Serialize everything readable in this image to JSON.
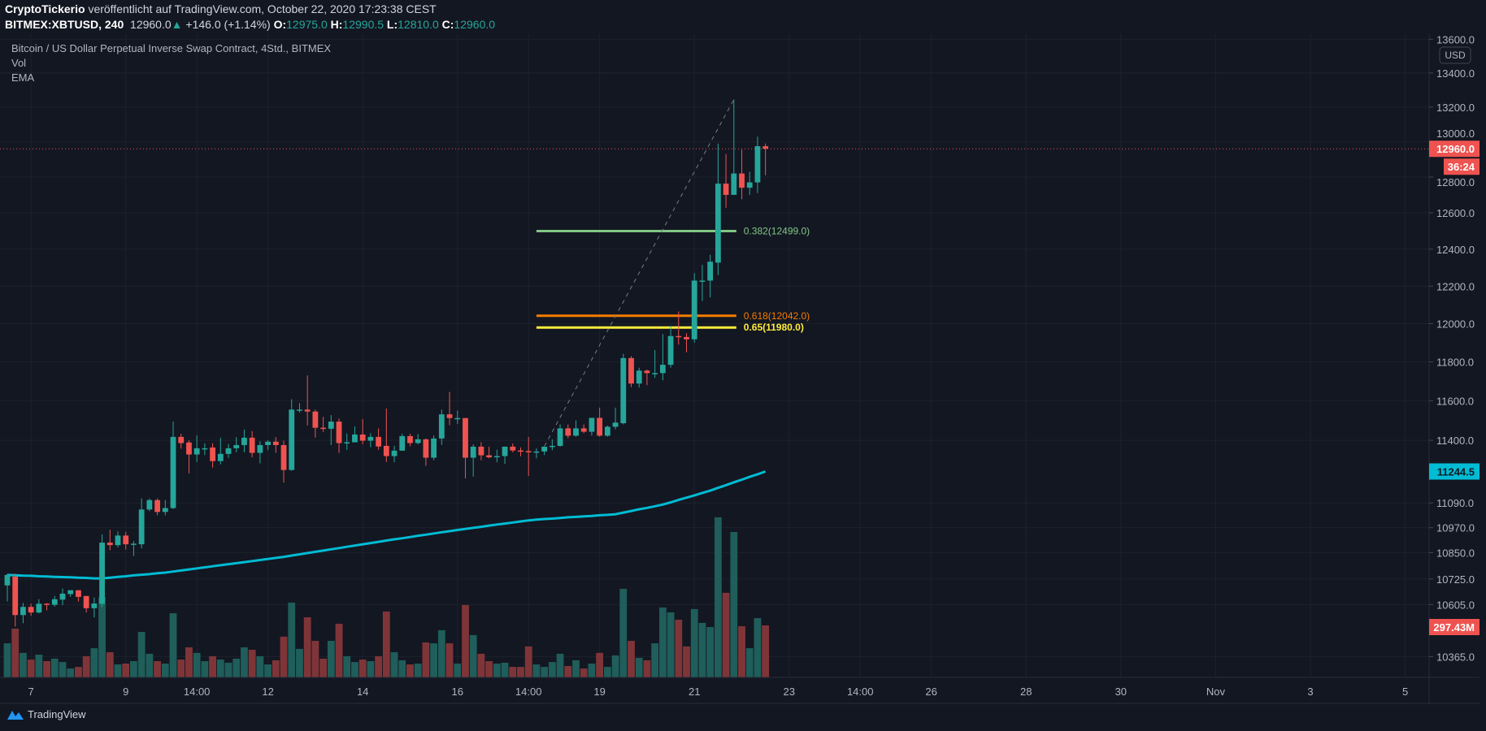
{
  "header": {
    "author": "CryptoTickerio",
    "published": "veröffentlicht auf TradingView.com, October 22, 2020 17:23:38 CEST",
    "symbol": "BITMEX:XBTUSD, 240",
    "last": "12960.0",
    "change": "+146.0 (+1.14%)",
    "o_label": "O:",
    "o": "12975.0",
    "h_label": "H:",
    "h": "12990.5",
    "l_label": "L:",
    "l": "12810.0",
    "c_label": "C:",
    "c": "12960.0"
  },
  "legend": {
    "title": "Bitcoin / US Dollar Perpetual Inverse Swap Contract, 4Std., BITMEX",
    "vol": "Vol",
    "ema": "EMA"
  },
  "axis": {
    "currency": "USD",
    "last_price_badge": "12960.0",
    "countdown_badge": "36:24",
    "ema_badge": "11244.5",
    "volume_badge": "297.43M"
  },
  "footer": {
    "brand": "TradingView"
  },
  "colors": {
    "background": "#131722",
    "up": "#26a69a",
    "down": "#ef5350",
    "ema": "#00bcd4",
    "fib_0382": "#81c784",
    "fib_0618": "#f57c00",
    "fib_065": "#ffeb3b"
  },
  "chart_data": {
    "type": "candlestick",
    "scale": "log",
    "grid": true,
    "y_ticks": [
      "13600.0",
      "13400.0",
      "13200.0",
      "13000.0",
      "12800.0",
      "12600.0",
      "12400.0",
      "12200.0",
      "12000.0",
      "11800.0",
      "11600.0",
      "11400.0",
      "11090.0",
      "10970.0",
      "10850.0",
      "10725.0",
      "10605.0",
      "10365.0"
    ],
    "x_ticks": [
      "7",
      "9",
      "14:00",
      "12",
      "14",
      "16",
      "14:00",
      "19",
      "21",
      "23",
      "14:00",
      "26",
      "28",
      "30",
      "Nov",
      "3",
      "5"
    ],
    "ohlc": [
      [
        10695,
        10750,
        10620,
        10744
      ],
      [
        10736,
        10750,
        10503,
        10556
      ],
      [
        10556,
        10613,
        10518,
        10594
      ],
      [
        10594,
        10609,
        10552,
        10568
      ],
      [
        10568,
        10630,
        10564,
        10609
      ],
      [
        10609,
        10612,
        10578,
        10604
      ],
      [
        10604,
        10645,
        10596,
        10630
      ],
      [
        10628,
        10680,
        10602,
        10656
      ],
      [
        10654,
        10672,
        10641,
        10672
      ],
      [
        10672,
        10672,
        10619,
        10641
      ],
      [
        10645,
        10645,
        10568,
        10588
      ],
      [
        10588,
        10638,
        10545,
        10610
      ],
      [
        10608,
        10938,
        10594,
        10898
      ],
      [
        10898,
        10960,
        10862,
        10886
      ],
      [
        10886,
        10952,
        10875,
        10932
      ],
      [
        10932,
        10950,
        10865,
        10890
      ],
      [
        10893,
        10905,
        10834,
        10893
      ],
      [
        10890,
        11112,
        10870,
        11058
      ],
      [
        11058,
        11112,
        11050,
        11104
      ],
      [
        11104,
        11112,
        11030,
        11046
      ],
      [
        11046,
        11104,
        11030,
        11065
      ],
      [
        11065,
        11494,
        11060,
        11417
      ],
      [
        11417,
        11433,
        11358,
        11386
      ],
      [
        11389,
        11400,
        11235,
        11329
      ],
      [
        11329,
        11425,
        11292,
        11360
      ],
      [
        11360,
        11385,
        11326,
        11360
      ],
      [
        11364,
        11385,
        11264,
        11296
      ],
      [
        11296,
        11413,
        11280,
        11332
      ],
      [
        11332,
        11382,
        11312,
        11360
      ],
      [
        11360,
        11416,
        11340,
        11376
      ],
      [
        11376,
        11454,
        11340,
        11413
      ],
      [
        11413,
        11446,
        11315,
        11337
      ],
      [
        11337,
        11395,
        11285,
        11376
      ],
      [
        11376,
        11400,
        11350,
        11393
      ],
      [
        11393,
        11416,
        11337,
        11376
      ],
      [
        11376,
        11398,
        11190,
        11252
      ],
      [
        11252,
        11608,
        11248,
        11555
      ],
      [
        11555,
        11588,
        11540,
        11555
      ],
      [
        11555,
        11730,
        11475,
        11545
      ],
      [
        11545,
        11555,
        11413,
        11463
      ],
      [
        11463,
        11518,
        11442,
        11458
      ],
      [
        11458,
        11527,
        11376,
        11494
      ],
      [
        11494,
        11510,
        11337,
        11386
      ],
      [
        11386,
        11434,
        11352,
        11390
      ],
      [
        11390,
        11470,
        11390,
        11429
      ],
      [
        11429,
        11507,
        11380,
        11398
      ],
      [
        11398,
        11436,
        11365,
        11417
      ],
      [
        11417,
        11460,
        11353,
        11369
      ],
      [
        11372,
        11560,
        11292,
        11321
      ],
      [
        11321,
        11372,
        11290,
        11348
      ],
      [
        11348,
        11433,
        11348,
        11421
      ],
      [
        11421,
        11433,
        11370,
        11386
      ],
      [
        11386,
        11431,
        11380,
        11405
      ],
      [
        11405,
        11409,
        11272,
        11313
      ],
      [
        11313,
        11425,
        11300,
        11409
      ],
      [
        11409,
        11555,
        11377,
        11531
      ],
      [
        11531,
        11645,
        11476,
        11512
      ],
      [
        11512,
        11550,
        11482,
        11512
      ],
      [
        11512,
        11512,
        11211,
        11313
      ],
      [
        11313,
        11380,
        11219,
        11368
      ],
      [
        11368,
        11390,
        11300,
        11325
      ],
      [
        11325,
        11368,
        11310,
        11315
      ],
      [
        11318,
        11353,
        11290,
        11321
      ],
      [
        11321,
        11368,
        11282,
        11368
      ],
      [
        11368,
        11384,
        11340,
        11349
      ],
      [
        11349,
        11364,
        11320,
        11346
      ],
      [
        11346,
        11417,
        11223,
        11340
      ],
      [
        11340,
        11360,
        11310,
        11344
      ],
      [
        11344,
        11368,
        11326,
        11368
      ],
      [
        11368,
        11405,
        11350,
        11372
      ],
      [
        11372,
        11480,
        11368,
        11460
      ],
      [
        11460,
        11480,
        11410,
        11423
      ],
      [
        11423,
        11500,
        11418,
        11460
      ],
      [
        11460,
        11480,
        11436,
        11443
      ],
      [
        11443,
        11513,
        11423,
        11513
      ],
      [
        11513,
        11565,
        11418,
        11423
      ],
      [
        11423,
        11474,
        11418,
        11468
      ],
      [
        11468,
        11565,
        11455,
        11489
      ],
      [
        11486,
        11842,
        11480,
        11820
      ],
      [
        11820,
        11830,
        11670,
        11688
      ],
      [
        11688,
        11770,
        11668,
        11755
      ],
      [
        11755,
        11760,
        11680,
        11742
      ],
      [
        11742,
        11862,
        11718,
        11742
      ],
      [
        11742,
        11945,
        11705,
        11785
      ],
      [
        11785,
        11988,
        11770,
        11935
      ],
      [
        11935,
        12065,
        11890,
        11930
      ],
      [
        11930,
        11950,
        11850,
        11918
      ],
      [
        11918,
        12270,
        11900,
        12230
      ],
      [
        12230,
        12315,
        12120,
        12230
      ],
      [
        12230,
        12370,
        12140,
        12332
      ],
      [
        12327,
        12990,
        12260,
        12763
      ],
      [
        12763,
        12930,
        12628,
        12700
      ],
      [
        12700,
        13244,
        12700,
        12820
      ],
      [
        12820,
        12955,
        12675,
        12740
      ],
      [
        12740,
        12830,
        12700,
        12770
      ],
      [
        12770,
        13030,
        12710,
        12975
      ],
      [
        12975,
        12990.5,
        12810,
        12960
      ]
    ],
    "volume_millions": [
      195,
      279,
      140,
      102,
      130,
      93,
      107,
      88,
      51,
      60,
      121,
      167,
      459,
      144,
      74,
      79,
      93,
      260,
      135,
      93,
      79,
      367,
      102,
      172,
      140,
      93,
      121,
      102,
      84,
      107,
      172,
      158,
      121,
      74,
      98,
      233,
      428,
      163,
      344,
      209,
      107,
      209,
      307,
      121,
      88,
      102,
      93,
      121,
      377,
      144,
      98,
      74,
      79,
      200,
      195,
      270,
      195,
      79,
      414,
      242,
      135,
      93,
      79,
      84,
      60,
      60,
      177,
      74,
      60,
      88,
      135,
      65,
      98,
      51,
      79,
      140,
      60,
      126,
      507,
      209,
      112,
      98,
      195,
      400,
      372,
      330,
      177,
      391,
      312,
      288,
      916,
      484,
      832,
      293,
      167,
      339,
      297.43
    ],
    "ema": [
      10744,
      10743,
      10741,
      10740,
      10738,
      10737,
      10735,
      10734,
      10733,
      10731,
      10730,
      10728,
      10728,
      10731,
      10735,
      10738,
      10742,
      10745,
      10748,
      10752,
      10755,
      10760,
      10765,
      10770,
      10775,
      10780,
      10785,
      10790,
      10795,
      10800,
      10805,
      10810,
      10815,
      10820,
      10825,
      10830,
      10836,
      10842,
      10848,
      10854,
      10860,
      10866,
      10872,
      10878,
      10884,
      10890,
      10896,
      10902,
      10908,
      10914,
      10919,
      10925,
      10931,
      10936,
      10942,
      10948,
      10953,
      10959,
      10964,
      10969,
      10974,
      10980,
      10985,
      10990,
      10995,
      11000,
      11005,
      11009,
      11012,
      11014,
      11017,
      11020,
      11022,
      11025,
      11027,
      11030,
      11032,
      11035,
      11043,
      11051,
      11059,
      11066,
      11074,
      11082,
      11093,
      11105,
      11116,
      11127,
      11139,
      11150,
      11164,
      11177,
      11191,
      11204,
      11218,
      11231,
      11244.5
    ],
    "fib_levels": [
      {
        "label": "0.382(12499.0)",
        "value": 12499.0
      },
      {
        "label": "0.618(12042.0)",
        "value": 12042.0
      },
      {
        "label": "0.65(11980.0)",
        "value": 11980.0
      }
    ],
    "trend_line": {
      "from_price": 11370,
      "to_price": 13244
    }
  }
}
